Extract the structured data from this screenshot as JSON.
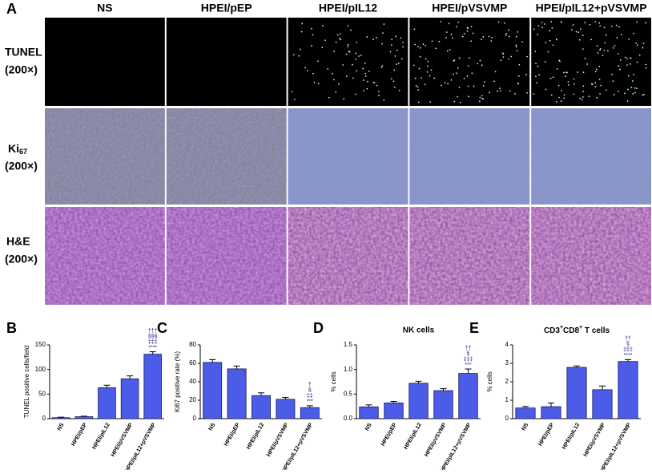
{
  "figure": {
    "panel": "A",
    "columns": [
      "NS",
      "HPEI/pEP",
      "HPEI/pIL12",
      "HPEI/pVSVMP",
      "HPEI/pIL12+pVSVMP"
    ],
    "rows": [
      {
        "lines": [
          "TUNEL",
          "(200×)"
        ]
      },
      {
        "lines": [
          "Ki",
          "(200×)"
        ],
        "subscript": "67"
      },
      {
        "lines": [
          "H&E",
          "(200×)"
        ]
      }
    ]
  },
  "chart_data": [
    {
      "type": "bar",
      "panel": "B",
      "ylabel": "TUNEL positive cells/field",
      "categories": [
        "NS",
        "HPEI/pEP",
        "HPEI/pIL12",
        "HPEI/pVSVMP",
        "HPEI/pIL12+pVSVMP"
      ],
      "values": [
        2,
        4,
        63,
        81,
        131
      ],
      "errors": [
        1,
        1,
        5,
        6,
        5
      ],
      "color": "#4a5ce8",
      "ylim": [
        0,
        150
      ],
      "yticks": [
        0,
        50,
        100,
        150
      ],
      "annotations": [
        "†††",
        "§§§",
        "‡‡‡",
        "****"
      ]
    },
    {
      "type": "bar",
      "panel": "C",
      "ylabel": "Ki67 positive rate (%)",
      "categories": [
        "NS",
        "HPEI/pEP",
        "HPEI/pIL12",
        "HPEI/pVSVMP",
        "HPEI/pIL12+pVSVMP"
      ],
      "values": [
        61,
        54,
        25,
        21,
        12
      ],
      "errors": [
        3,
        3,
        3,
        2,
        2
      ],
      "color": "#4a5ce8",
      "ylim": [
        0,
        80
      ],
      "yticks": [
        0,
        20,
        40,
        60,
        80
      ],
      "annotations": [
        "†",
        "§",
        "‡‡",
        "***"
      ]
    },
    {
      "type": "bar",
      "panel": "D",
      "title": "NK cells",
      "ylabel": "% cells",
      "categories": [
        "NS",
        "HPEI/pEP",
        "HPEI/pIL12",
        "HPEI/pVSVMP",
        "HPEI/pIL12+pVSVMP"
      ],
      "values": [
        0.24,
        0.32,
        0.72,
        0.57,
        0.92
      ],
      "errors": [
        0.04,
        0.03,
        0.04,
        0.04,
        0.09
      ],
      "color": "#4a5ce8",
      "ylim": [
        0,
        1.5
      ],
      "yticks": [
        {
          "value": 0,
          "label": "0.0"
        },
        {
          "value": 0.5,
          "label": "0.5"
        },
        {
          "value": 1,
          "label": "1.0"
        },
        {
          "value": 1.5,
          "label": "1.5"
        }
      ],
      "annotations": [
        "††",
        "§",
        "‡‡‡",
        "***"
      ]
    },
    {
      "type": "bar",
      "panel": "E",
      "title_segments": [
        "CD3",
        "+",
        "CD8",
        "+",
        " T cells"
      ],
      "ylabel": "% cells",
      "categories": [
        "NS",
        "HPEI/pEP",
        "HPEI/pIL12",
        "HPEI/pVSVMP",
        "HPEI/pIL12+pVSVMP"
      ],
      "values": [
        0.58,
        0.65,
        2.78,
        1.57,
        3.1
      ],
      "errors": [
        0.08,
        0.2,
        0.08,
        0.2,
        0.1
      ],
      "color": "#4a5ce8",
      "ylim": [
        0,
        4
      ],
      "yticks": [
        0,
        1,
        2,
        3,
        4
      ],
      "annotations": [
        "††",
        "§",
        "‡‡‡",
        "****"
      ]
    }
  ]
}
